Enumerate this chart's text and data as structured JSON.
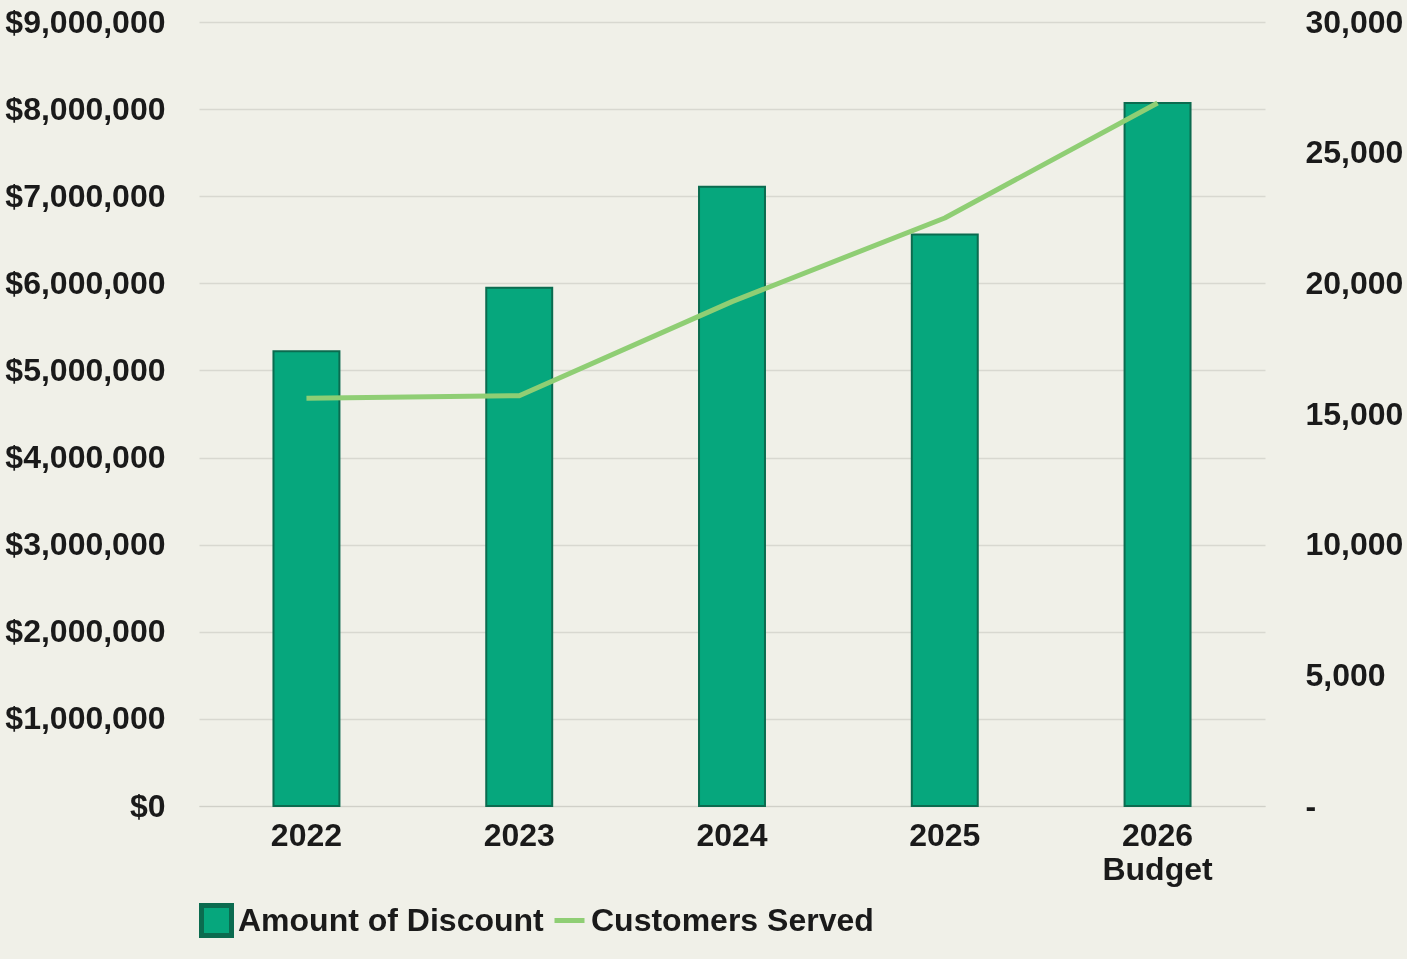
{
  "chart_data": {
    "type": "bar",
    "categories": [
      "2022",
      "2023",
      "2024",
      "2025",
      "2026 Budget"
    ],
    "series": [
      {
        "name": "Amount of Discount",
        "color": "#06a77d",
        "values": [
          5220000,
          5950000,
          7110000,
          6560000,
          8070000
        ]
      },
      {
        "name": "Customers Served",
        "type": "line",
        "axis": "y2",
        "color": "#8fce74",
        "values": [
          15600,
          15700,
          19300,
          22500,
          26900
        ]
      }
    ],
    "ylim": [
      0,
      9000000
    ],
    "yticks": [
      {
        "value": 0,
        "label": "$0"
      },
      {
        "value": 1000000,
        "label": "$1,000,000"
      },
      {
        "value": 2000000,
        "label": "$2,000,000"
      },
      {
        "value": 3000000,
        "label": "$3,000,000"
      },
      {
        "value": 4000000,
        "label": "$4,000,000"
      },
      {
        "value": 5000000,
        "label": "$5,000,000"
      },
      {
        "value": 6000000,
        "label": "$6,000,000"
      },
      {
        "value": 7000000,
        "label": "$7,000,000"
      },
      {
        "value": 8000000,
        "label": "$8,000,000"
      },
      {
        "value": 9000000,
        "label": "$9,000,000"
      }
    ],
    "y2lim": [
      0,
      30000
    ],
    "y2ticks": [
      {
        "value": 0,
        "label": "-"
      },
      {
        "value": 5000,
        "label": "5,000"
      },
      {
        "value": 10000,
        "label": "10,000"
      },
      {
        "value": 15000,
        "label": "15,000"
      },
      {
        "value": 20000,
        "label": "20,000"
      },
      {
        "value": 25000,
        "label": "25,000"
      },
      {
        "value": 30000,
        "label": "30,000"
      }
    ],
    "grid": "y",
    "legend": "bottom"
  }
}
